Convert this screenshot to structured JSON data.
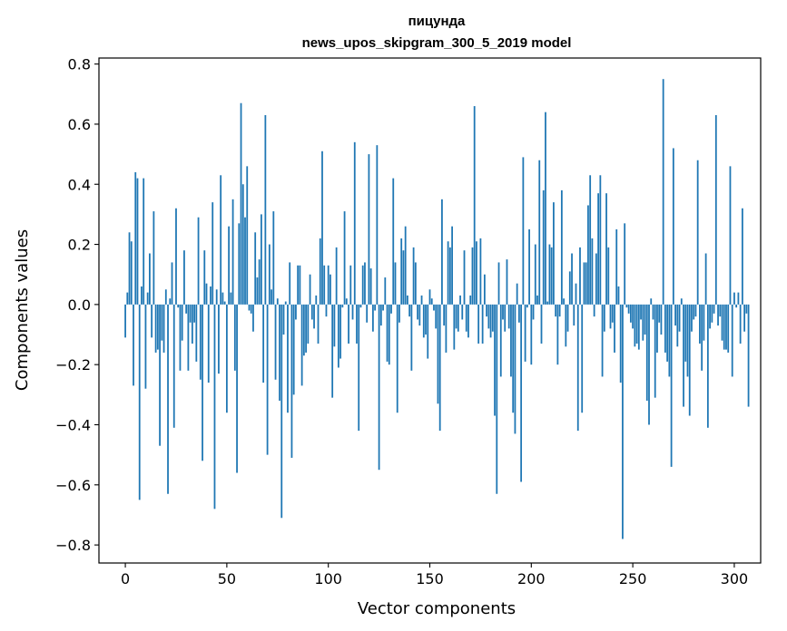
{
  "chart_data": {
    "type": "bar",
    "title": "пицунда",
    "subtitle": "news_upos_skipgram_300_5_2019 model",
    "xlabel": "Vector components",
    "ylabel": "Components values",
    "xlim": [
      -13,
      313
    ],
    "ylim": [
      -0.86,
      0.82
    ],
    "x_ticks": [
      0,
      50,
      100,
      150,
      200,
      250,
      300
    ],
    "x_tick_labels": [
      "0",
      "50",
      "100",
      "150",
      "200",
      "250",
      "300"
    ],
    "y_ticks": [
      -0.8,
      -0.6,
      -0.4,
      -0.2,
      0.0,
      0.2,
      0.4,
      0.6,
      0.8
    ],
    "y_tick_labels": [
      "−0.8",
      "−0.6",
      "−0.4",
      "−0.2",
      "0.0",
      "0.2",
      "0.4",
      "0.6",
      "0.8"
    ],
    "bar_color": "#1f77b4",
    "grid": false,
    "values": [
      -0.11,
      0.04,
      0.24,
      0.21,
      -0.27,
      0.44,
      0.42,
      -0.65,
      0.06,
      0.42,
      -0.28,
      0.04,
      0.17,
      -0.11,
      0.31,
      -0.16,
      -0.15,
      -0.47,
      -0.12,
      -0.16,
      0.05,
      -0.63,
      0.02,
      0.14,
      -0.41,
      0.32,
      -0.01,
      -0.22,
      -0.12,
      0.18,
      -0.03,
      -0.22,
      -0.06,
      -0.13,
      -0.06,
      -0.19,
      0.29,
      -0.25,
      -0.52,
      0.18,
      0.07,
      -0.26,
      0.06,
      0.34,
      -0.68,
      0.05,
      -0.23,
      0.43,
      0.04,
      0.01,
      -0.36,
      0.26,
      0.04,
      0.35,
      -0.22,
      -0.56,
      0.27,
      0.67,
      0.4,
      0.29,
      0.46,
      -0.02,
      -0.03,
      -0.09,
      0.24,
      0.09,
      0.15,
      0.3,
      -0.26,
      0.63,
      -0.5,
      0.2,
      0.05,
      0.31,
      -0.25,
      0.02,
      -0.32,
      -0.71,
      -0.1,
      0.01,
      -0.36,
      0.14,
      -0.51,
      -0.3,
      -0.05,
      0.13,
      0.13,
      -0.27,
      -0.17,
      -0.16,
      -0.13,
      0.1,
      -0.05,
      -0.08,
      0.03,
      -0.13,
      0.22,
      0.51,
      0.13,
      -0.04,
      0.13,
      0.1,
      -0.31,
      -0.14,
      0.19,
      -0.21,
      -0.18,
      -0.01,
      0.31,
      0.02,
      -0.13,
      0.13,
      -0.05,
      0.54,
      -0.13,
      -0.42,
      -0.01,
      0.13,
      0.14,
      -0.06,
      0.5,
      0.12,
      -0.09,
      -0.02,
      0.53,
      -0.55,
      -0.07,
      -0.02,
      0.09,
      -0.19,
      -0.2,
      -0.03,
      0.42,
      0.14,
      -0.36,
      -0.06,
      0.22,
      0.18,
      0.26,
      0.03,
      -0.04,
      -0.22,
      0.19,
      0.14,
      -0.05,
      -0.07,
      0.03,
      -0.11,
      -0.1,
      -0.18,
      0.05,
      0.02,
      -0.02,
      -0.08,
      -0.33,
      -0.42,
      0.35,
      -0.07,
      -0.16,
      0.21,
      0.19,
      0.26,
      -0.15,
      -0.08,
      -0.09,
      0.03,
      -0.05,
      0.18,
      -0.09,
      -0.11,
      0.03,
      0.19,
      0.66,
      0.21,
      -0.13,
      0.22,
      -0.13,
      0.1,
      -0.04,
      -0.08,
      -0.11,
      -0.09,
      -0.37,
      -0.63,
      0.14,
      -0.24,
      -0.05,
      -0.09,
      0.15,
      -0.08,
      -0.24,
      -0.36,
      -0.43,
      0.07,
      -0.06,
      -0.59,
      0.49,
      -0.19,
      -0.01,
      0.25,
      -0.2,
      -0.05,
      0.2,
      0.03,
      0.48,
      -0.13,
      0.38,
      0.64,
      0.01,
      0.2,
      0.19,
      0.34,
      -0.04,
      -0.2,
      -0.04,
      0.38,
      0.02,
      -0.14,
      -0.09,
      0.11,
      0.17,
      -0.07,
      0.07,
      -0.42,
      0.19,
      -0.36,
      0.14,
      0.14,
      0.33,
      0.43,
      0.22,
      -0.04,
      0.17,
      0.37,
      0.43,
      -0.24,
      -0.09,
      0.37,
      0.19,
      -0.08,
      -0.06,
      -0.16,
      0.25,
      0.06,
      -0.26,
      -0.78,
      0.27,
      -0.01,
      -0.03,
      -0.06,
      -0.08,
      -0.14,
      -0.13,
      -0.15,
      -0.05,
      -0.12,
      -0.1,
      -0.32,
      -0.4,
      0.02,
      -0.05,
      -0.31,
      -0.16,
      -0.06,
      -0.1,
      0.75,
      -0.16,
      -0.19,
      -0.24,
      -0.54,
      0.52,
      -0.07,
      -0.14,
      -0.09,
      0.02,
      -0.34,
      -0.19,
      -0.24,
      -0.37,
      -0.09,
      -0.05,
      -0.04,
      0.48,
      -0.13,
      -0.22,
      -0.12,
      0.17,
      -0.41,
      -0.08,
      -0.06,
      -0.03,
      0.63,
      -0.07,
      -0.04,
      -0.12,
      -0.15,
      -0.15,
      -0.16,
      0.46,
      -0.24,
      0.04,
      -0.01,
      0.04,
      -0.13,
      0.32,
      -0.09,
      -0.03,
      -0.34
    ]
  }
}
